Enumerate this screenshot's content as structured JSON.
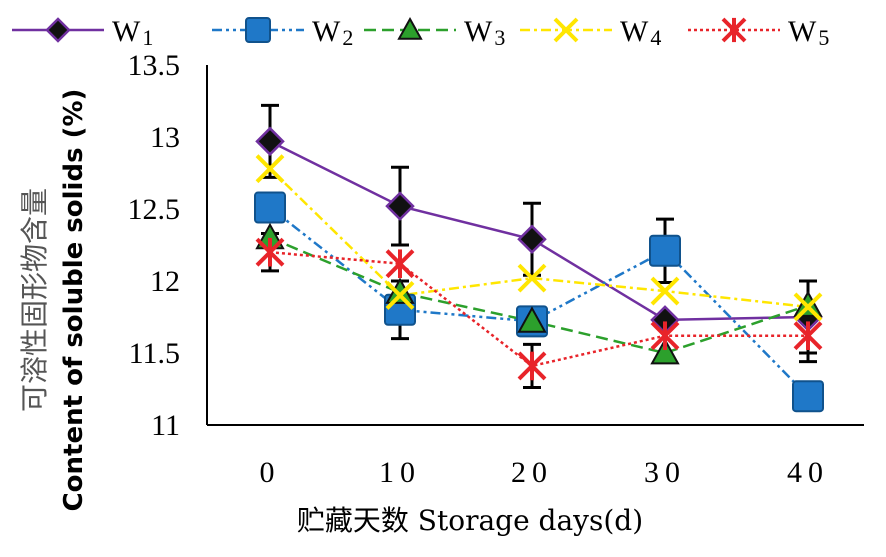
{
  "chart_data": {
    "type": "line",
    "xlabel": "贮藏天数 Storage days(d)",
    "ylabel_cn": "可溶性固形物含量",
    "ylabel_en": "Content of soluble solids (%)",
    "x": [
      0,
      10,
      20,
      30,
      40
    ],
    "x_tick_labels": [
      "0",
      "10",
      "20",
      "30",
      "40"
    ],
    "y_tick_labels": [
      "11",
      "11.5",
      "12",
      "12.5",
      "13",
      "13.5"
    ],
    "ylim": [
      11,
      13.5
    ],
    "legend_position": "top",
    "series": [
      {
        "name": "W",
        "sub": "1",
        "values": [
          12.97,
          12.52,
          12.29,
          11.73,
          11.75
        ],
        "error": [
          0.25,
          0.27,
          0.25,
          0.0,
          0.25
        ],
        "color": "#7030a0",
        "marker": "diamond",
        "dash": ""
      },
      {
        "name": "W",
        "sub": "2",
        "values": [
          12.51,
          11.8,
          11.72,
          12.21,
          11.2
        ],
        "error": [
          0.0,
          0.2,
          0.0,
          0.22,
          0.0
        ],
        "color": "#1f78c8",
        "marker": "square",
        "dash": "10 4 3 4 3 4"
      },
      {
        "name": "W",
        "sub": "3",
        "values": [
          12.3,
          11.92,
          11.72,
          11.5,
          11.83
        ],
        "error": [
          0.0,
          0.0,
          0.0,
          0.0,
          0.0
        ],
        "color": "#2ca02c",
        "marker": "triangle",
        "dash": "12 6"
      },
      {
        "name": "W",
        "sub": "4",
        "values": [
          12.78,
          11.9,
          12.02,
          11.93,
          11.82
        ],
        "error": [
          0.0,
          0.0,
          0.0,
          0.0,
          0.0
        ],
        "color": "#ffe600",
        "marker": "x",
        "dash": "10 4 3 4"
      },
      {
        "name": "W",
        "sub": "5",
        "values": [
          12.2,
          12.12,
          11.41,
          11.62,
          11.62
        ],
        "error": [
          0.13,
          0.0,
          0.15,
          0.0,
          0.18
        ],
        "color": "#e8242a",
        "marker": "asterisk",
        "dash": "3 3"
      }
    ]
  }
}
